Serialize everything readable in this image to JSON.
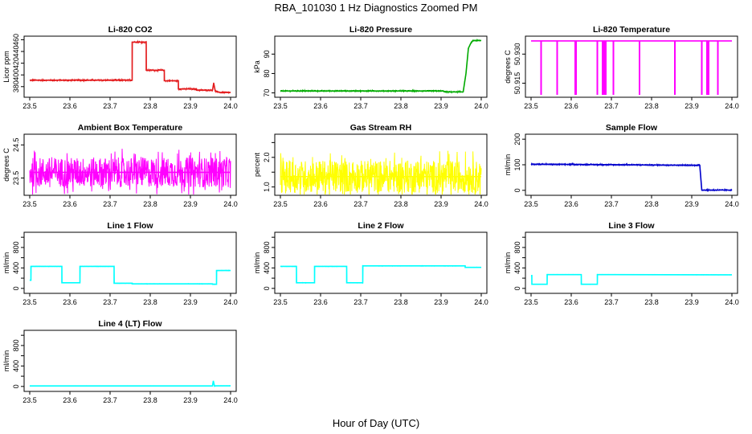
{
  "title": "RBA_101030  1 Hz Diagnostics Zoomed PM",
  "xlabel": "Hour of Day (UTC)",
  "chart_data": [
    {
      "type": "line",
      "title": "Li-820 CO2",
      "ylabel": "Licor ppm",
      "xlim": [
        23.5,
        24.0
      ],
      "ylim": [
        366,
        462
      ],
      "xticks": [
        "23.5",
        "23.6",
        "23.7",
        "23.8",
        "23.9",
        "24.0"
      ],
      "yticks": [
        380,
        400,
        420,
        440,
        460
      ],
      "color": "#e31a1c",
      "series": [
        {
          "x": [
            23.5,
            23.755,
            23.755,
            23.79,
            23.79,
            23.835,
            23.835,
            23.87,
            23.87,
            23.915,
            23.915,
            23.955,
            23.958,
            23.962,
            23.975,
            24.0
          ],
          "y": [
            391,
            391,
            456,
            456,
            408,
            408,
            390,
            390,
            376,
            376,
            374,
            374,
            386,
            372,
            370,
            370
          ]
        }
      ],
      "noise": 1.2
    },
    {
      "type": "line",
      "title": "Li-820 Pressure",
      "ylabel": "kPa",
      "xlim": [
        23.5,
        24.0
      ],
      "ylim": [
        69,
        98
      ],
      "xticks": [
        "23.5",
        "23.6",
        "23.7",
        "23.8",
        "23.9",
        "24.0"
      ],
      "yticks": [
        70,
        80,
        90
      ],
      "color": "#00aa00",
      "series": [
        {
          "x": [
            23.5,
            23.905,
            23.91,
            23.955,
            23.962,
            23.968,
            23.975,
            23.98,
            24.0
          ],
          "y": [
            71,
            71,
            70.5,
            70.5,
            80,
            93,
            96,
            97,
            97
          ]
        }
      ],
      "noise": 0.3
    },
    {
      "type": "line",
      "title": "Li-820 Temperature",
      "ylabel": "degrees C",
      "xlim": [
        23.5,
        24.0
      ],
      "ylim": [
        50.909,
        50.938
      ],
      "xticks": [
        "23.5",
        "23.6",
        "23.7",
        "23.8",
        "23.9",
        "24.0"
      ],
      "yticks": [
        50.915,
        50.93
      ],
      "ytick_labels": [
        "50.915",
        "50.930"
      ],
      "color": "#ff00ff",
      "series": [
        {
          "x": [
            23.5,
            24.0
          ],
          "y": [
            50.9368,
            50.9368
          ]
        }
      ],
      "spikes": [
        23.525,
        23.565,
        23.61,
        23.612,
        23.665,
        23.678,
        23.682,
        23.686,
        23.705,
        23.77,
        23.858,
        23.925,
        23.938,
        23.942,
        23.965
      ],
      "spike_to": 50.909
    },
    {
      "type": "line",
      "title": "Ambient Box Temperature",
      "ylabel": "degrees C",
      "xlim": [
        23.5,
        24.0
      ],
      "ylim": [
        23.05,
        24.75
      ],
      "xticks": [
        "23.5",
        "23.6",
        "23.7",
        "23.8",
        "23.9",
        "24.0"
      ],
      "yticks": [
        23.5,
        24.5
      ],
      "color": "#ff00ff",
      "series": [
        {
          "x": [
            23.5,
            24.0
          ],
          "y": [
            23.67,
            23.67
          ]
        }
      ],
      "noise": 0.45
    },
    {
      "type": "line",
      "title": "Gas Stream RH",
      "ylabel": "percent",
      "xlim": [
        23.5,
        24.0
      ],
      "ylim": [
        0.8,
        2.7
      ],
      "xticks": [
        "23.5",
        "23.6",
        "23.7",
        "23.8",
        "23.9",
        "24.0"
      ],
      "yticks": [
        1.0,
        1.5,
        2.0,
        2.5
      ],
      "ytick_labels": [
        "1.0",
        "",
        "2.0",
        ""
      ],
      "color": "#ffff00",
      "series": [
        {
          "x": [
            23.5,
            24.0
          ],
          "y": [
            1.35,
            1.35
          ]
        }
      ],
      "noise": 0.55
    },
    {
      "type": "line",
      "title": "Sample Flow",
      "ylabel": "ml/min",
      "xlim": [
        23.5,
        24.0
      ],
      "ylim": [
        -10,
        210
      ],
      "xticks": [
        "23.5",
        "23.6",
        "23.7",
        "23.8",
        "23.9",
        "24.0"
      ],
      "yticks": [
        0,
        100,
        200
      ],
      "color": "#0000cc",
      "series": [
        {
          "x": [
            23.5,
            23.92,
            23.925,
            24.0
          ],
          "y": [
            102,
            98,
            1,
            1
          ]
        }
      ],
      "noise": 2.5
    },
    {
      "type": "line",
      "title": "Line 1 Flow",
      "ylabel": "ml/min",
      "xlim": [
        23.5,
        24.0
      ],
      "ylim": [
        -50,
        1050
      ],
      "xticks": [
        "23.5",
        "23.6",
        "23.7",
        "23.8",
        "23.9",
        "24.0"
      ],
      "yticks": [
        0,
        200,
        400,
        600,
        800,
        1000
      ],
      "ytick_labels": [
        "0",
        "",
        "400",
        "",
        "800",
        ""
      ],
      "color": "#00ffff",
      "series": [
        {
          "x": [
            23.5,
            23.503,
            23.503,
            23.58,
            23.58,
            23.625,
            23.625,
            23.71,
            23.71,
            23.755,
            23.755,
            23.955,
            23.955,
            23.965,
            23.965,
            24.0
          ],
          "y": [
            160,
            160,
            430,
            430,
            110,
            110,
            430,
            430,
            100,
            100,
            88,
            88,
            80,
            80,
            350,
            350
          ]
        }
      ],
      "noise": 4
    },
    {
      "type": "line",
      "title": "Line 2 Flow",
      "ylabel": "ml/min",
      "xlim": [
        23.5,
        24.0
      ],
      "ylim": [
        -50,
        1050
      ],
      "xticks": [
        "23.5",
        "23.6",
        "23.7",
        "23.8",
        "23.9",
        "24.0"
      ],
      "yticks": [
        0,
        200,
        400,
        600,
        800,
        1000
      ],
      "ytick_labels": [
        "0",
        "",
        "400",
        "",
        "800",
        ""
      ],
      "color": "#00ffff",
      "series": [
        {
          "x": [
            23.5,
            23.54,
            23.54,
            23.585,
            23.585,
            23.665,
            23.665,
            23.705,
            23.705,
            23.96,
            23.96,
            24.0
          ],
          "y": [
            430,
            430,
            110,
            110,
            430,
            430,
            110,
            110,
            440,
            440,
            410,
            410
          ]
        }
      ],
      "noise": 4
    },
    {
      "type": "line",
      "title": "Line 3 Flow",
      "ylabel": "ml/min",
      "xlim": [
        23.5,
        24.0
      ],
      "ylim": [
        -50,
        1050
      ],
      "xticks": [
        "23.5",
        "23.6",
        "23.7",
        "23.8",
        "23.9",
        "24.0"
      ],
      "yticks": [
        0,
        200,
        400,
        600,
        800,
        1000
      ],
      "ytick_labels": [
        "0",
        "",
        "400",
        "",
        "800",
        ""
      ],
      "color": "#00ffff",
      "series": [
        {
          "x": [
            23.5,
            23.502,
            23.502,
            23.54,
            23.54,
            23.625,
            23.625,
            23.665,
            23.665,
            24.0
          ],
          "y": [
            250,
            250,
            80,
            80,
            270,
            270,
            80,
            80,
            270,
            265
          ]
        }
      ],
      "noise": 3
    },
    {
      "type": "line",
      "title": "Line 4 (LT) Flow",
      "ylabel": "ml/min",
      "xlim": [
        23.5,
        24.0
      ],
      "ylim": [
        -50,
        1050
      ],
      "xticks": [
        "23.5",
        "23.6",
        "23.7",
        "23.8",
        "23.9",
        "24.0"
      ],
      "yticks": [
        0,
        200,
        400,
        600,
        800,
        1000
      ],
      "ytick_labels": [
        "0",
        "",
        "400",
        "",
        "800",
        ""
      ],
      "color": "#00ffff",
      "series": [
        {
          "x": [
            23.5,
            23.955,
            23.957,
            23.96,
            23.963,
            24.0
          ],
          "y": [
            10,
            10,
            110,
            5,
            12,
            12
          ]
        }
      ],
      "noise": 2
    }
  ]
}
